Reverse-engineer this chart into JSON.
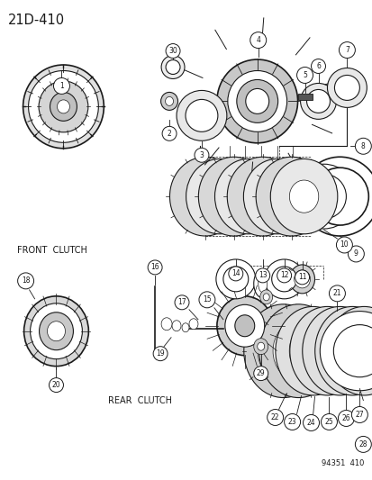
{
  "title": "21D-410",
  "bg_color": "#ffffff",
  "line_color": "#1a1a1a",
  "front_clutch_label": "FRONT  CLUTCH",
  "rear_clutch_label": "REAR  CLUTCH",
  "part_number": "94351  410",
  "fig_width": 4.14,
  "fig_height": 5.33,
  "dpi": 100
}
